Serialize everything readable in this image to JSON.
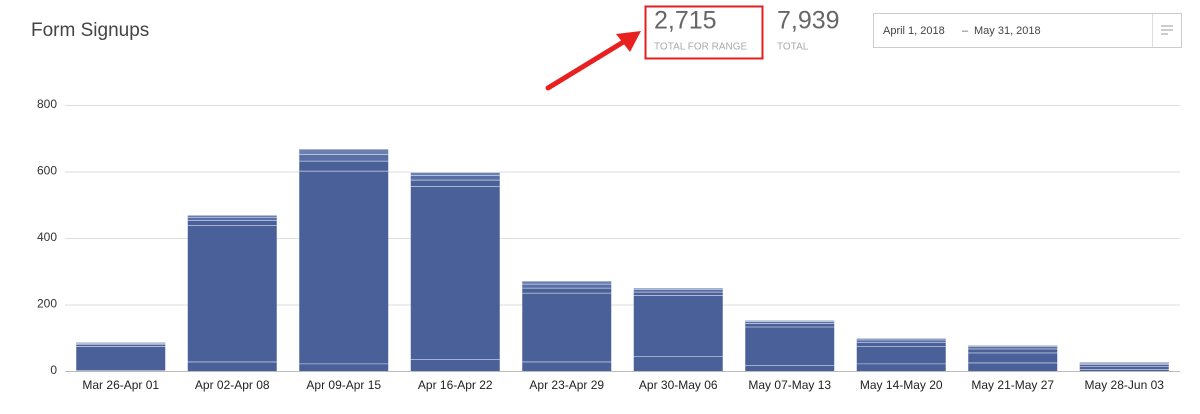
{
  "header": {
    "title": "Form Signups"
  },
  "stats": [
    {
      "value": "2,715",
      "label": "TOTAL FOR RANGE"
    },
    {
      "value": "7,939",
      "label": "TOTAL"
    }
  ],
  "date_range": {
    "start": "April 1, 2018",
    "separator": "–",
    "end": "May 31, 2018"
  },
  "chart_data": {
    "type": "bar",
    "stacked": true,
    "grid": true,
    "categories": [
      "Mar 26-Apr 01",
      "Apr 02-Apr 08",
      "Apr 09-Apr 15",
      "Apr 16-Apr 22",
      "Apr 23-Apr 29",
      "Apr 30-May 06",
      "May 07-May 13",
      "May 14-May 20",
      "May 21-May 27",
      "May 28-Jun 03"
    ],
    "series": [
      {
        "color": "#4a6099",
        "values": [
          3,
          28,
          22,
          35,
          28,
          45,
          18,
          22,
          25,
          5
        ]
      },
      {
        "color": "#4a6099",
        "values": [
          72,
          410,
          580,
          520,
          207,
          183,
          115,
          52,
          30,
          10
        ]
      },
      {
        "color": "#4a6099",
        "values": [
          5,
          15,
          30,
          20,
          15,
          10,
          10,
          12,
          12,
          5
        ]
      },
      {
        "color": "#5a6fa6",
        "values": [
          4,
          10,
          20,
          13,
          12,
          7,
          6,
          8,
          7,
          4
        ]
      },
      {
        "color": "#6a7fb2",
        "values": [
          3,
          6,
          16,
          10,
          9,
          5,
          4,
          5,
          4,
          3
        ]
      }
    ],
    "ylim": [
      0,
      800
    ],
    "yticks": [
      0,
      200,
      400,
      600,
      800
    ]
  }
}
